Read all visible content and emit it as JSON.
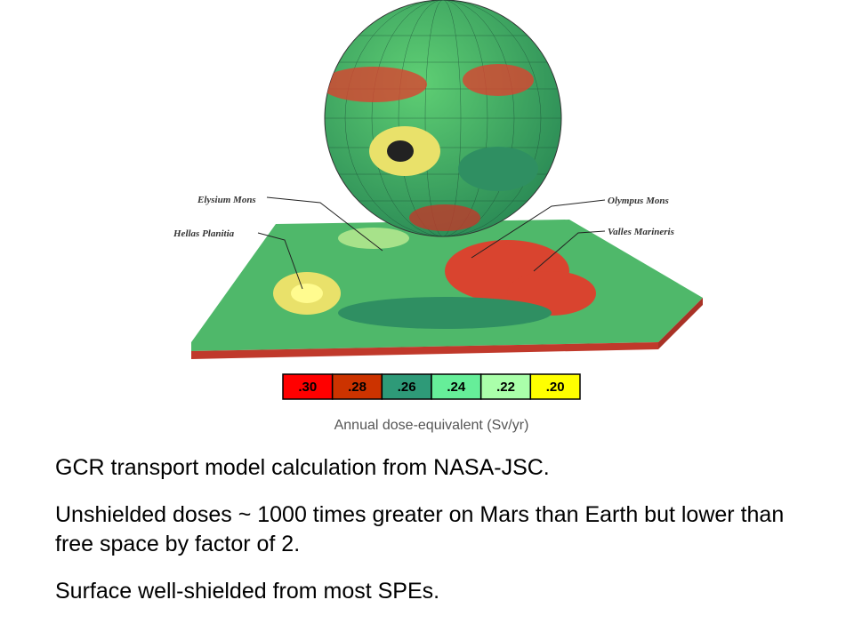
{
  "figure": {
    "labels": [
      "Elysium Mons",
      "Hellas Planitia",
      "Olympus Mons",
      "Valles Marineris"
    ],
    "legend": {
      "cells": [
        {
          "label": ".30",
          "color": "#ff0000"
        },
        {
          "label": ".28",
          "color": "#cc3300"
        },
        {
          "label": ".26",
          "color": "#2e9a78"
        },
        {
          "label": ".24",
          "color": "#66ee99"
        },
        {
          "label": ".22",
          "color": "#aaffaa"
        },
        {
          "label": ".20",
          "color": "#ffff00"
        }
      ],
      "caption": "Annual dose-equivalent (Sv/yr)"
    }
  },
  "bullets": [
    "GCR transport model calculation from NASA-JSC.",
    "Unshielded doses ~ 1000 times greater on Mars than Earth but lower than free space by factor of 2.",
    "Surface well-shielded from most SPEs."
  ]
}
